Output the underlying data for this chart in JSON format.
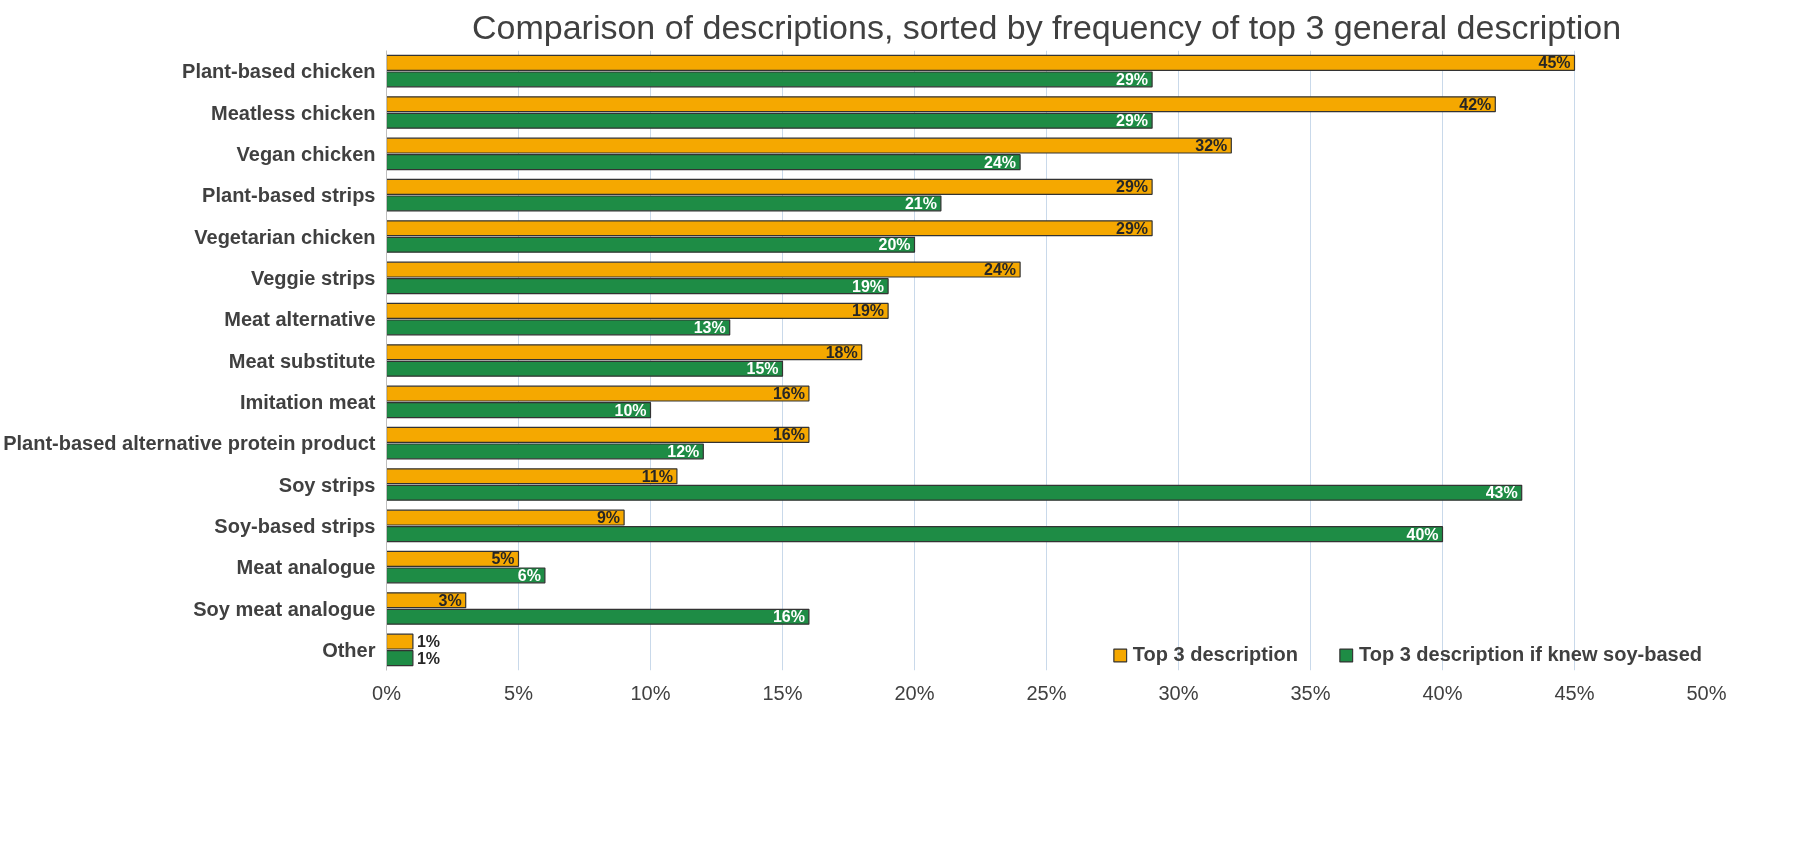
{
  "chart_data": {
    "type": "bar",
    "orientation": "horizontal",
    "title": "Comparison of descriptions, sorted by frequency of top 3 general description",
    "categories": [
      "Plant-based chicken",
      "Meatless chicken",
      "Vegan chicken",
      "Plant-based strips",
      "Vegetarian chicken",
      "Veggie strips",
      "Meat alternative",
      "Meat substitute",
      "Imitation meat",
      "Plant-based alternative protein product",
      "Soy strips",
      "Soy-based strips",
      "Meat analogue",
      "Soy meat analogue",
      "Other"
    ],
    "series": [
      {
        "name": "Top 3 description",
        "color": "#f5a800",
        "values": [
          45,
          42,
          32,
          29,
          29,
          24,
          19,
          18,
          16,
          16,
          11,
          9,
          5,
          3,
          1
        ],
        "value_labels": [
          "45%",
          "42%",
          "32%",
          "29%",
          "29%",
          "24%",
          "19%",
          "18%",
          "16%",
          "16%",
          "11%",
          "9%",
          "5%",
          "3%",
          "1%"
        ]
      },
      {
        "name": "Top 3 description if knew soy-based",
        "color": "#1e8c45",
        "values": [
          29,
          29,
          24,
          21,
          20,
          19,
          13,
          15,
          10,
          12,
          43,
          40,
          6,
          16,
          1
        ],
        "value_labels": [
          "29%",
          "29%",
          "24%",
          "21%",
          "20%",
          "19%",
          "13%",
          "15%",
          "10%",
          "12%",
          "43%",
          "40%",
          "6%",
          "16%",
          "1%"
        ]
      }
    ],
    "xlim": [
      0,
      50
    ],
    "xticks": [
      {
        "value": 0,
        "label": "0%"
      },
      {
        "value": 5,
        "label": "5%"
      },
      {
        "value": 10,
        "label": "10%"
      },
      {
        "value": 15,
        "label": "15%"
      },
      {
        "value": 20,
        "label": "20%"
      },
      {
        "value": 25,
        "label": "25%"
      },
      {
        "value": 30,
        "label": "30%"
      },
      {
        "value": 35,
        "label": "35%"
      },
      {
        "value": 40,
        "label": "40%"
      },
      {
        "value": 45,
        "label": "45%"
      },
      {
        "value": 50,
        "label": "50%"
      }
    ],
    "grid": "x",
    "legend": "bottom right"
  }
}
